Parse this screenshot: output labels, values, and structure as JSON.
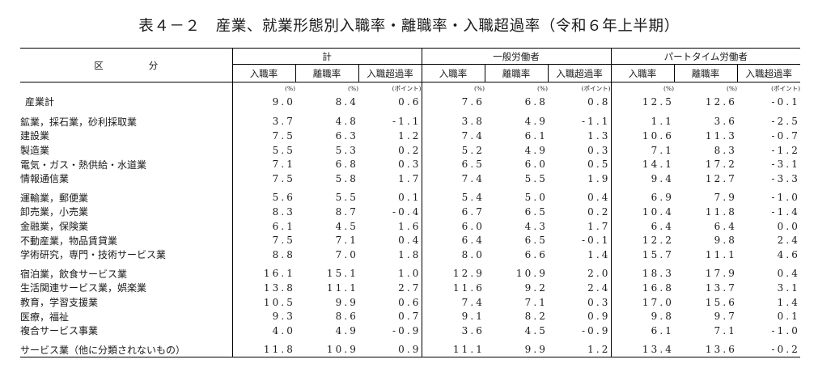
{
  "title": "表４－２　産業、就業形態別入職率・離職率・入職超過率（令和６年上半期）",
  "header": {
    "kubun_1": "区",
    "kubun_2": "分",
    "groups": [
      "計",
      "一般労働者",
      "パートタイム労働者"
    ],
    "sub": [
      "入職率",
      "離職率",
      "入職超過率"
    ],
    "units": [
      "(%)",
      "(%)",
      "(ポイント)"
    ]
  },
  "rows": [
    {
      "label": "産業計",
      "v": [
        "9.0",
        "8.4",
        "0.6",
        "7.6",
        "6.8",
        "0.8",
        "12.5",
        "12.6",
        "-0.1"
      ]
    },
    {
      "label": "鉱業，採石業，砂利採取業",
      "v": [
        "3.7",
        "4.8",
        "-1.1",
        "3.8",
        "4.9",
        "-1.1",
        "1.1",
        "3.6",
        "-2.5"
      ]
    },
    {
      "label": "建設業",
      "v": [
        "7.5",
        "6.3",
        "1.2",
        "7.4",
        "6.1",
        "1.3",
        "10.6",
        "11.3",
        "-0.7"
      ]
    },
    {
      "label": "製造業",
      "v": [
        "5.5",
        "5.3",
        "0.2",
        "5.2",
        "4.9",
        "0.3",
        "7.1",
        "8.3",
        "-1.2"
      ]
    },
    {
      "label": "電気・ガス・熱供給・水道業",
      "v": [
        "7.1",
        "6.8",
        "0.3",
        "6.5",
        "6.0",
        "0.5",
        "14.1",
        "17.2",
        "-3.1"
      ]
    },
    {
      "label": "情報通信業",
      "v": [
        "7.5",
        "5.8",
        "1.7",
        "7.4",
        "5.5",
        "1.9",
        "9.4",
        "12.7",
        "-3.3"
      ]
    },
    {
      "label": "運輸業，郵便業",
      "v": [
        "5.6",
        "5.5",
        "0.1",
        "5.4",
        "5.0",
        "0.4",
        "6.9",
        "7.9",
        "-1.0"
      ]
    },
    {
      "label": "卸売業，小売業",
      "v": [
        "8.3",
        "8.7",
        "-0.4",
        "6.7",
        "6.5",
        "0.2",
        "10.4",
        "11.8",
        "-1.4"
      ]
    },
    {
      "label": "金融業，保険業",
      "v": [
        "6.1",
        "4.5",
        "1.6",
        "6.0",
        "4.3",
        "1.7",
        "6.4",
        "6.4",
        "0.0"
      ]
    },
    {
      "label": "不動産業，物品賃貸業",
      "v": [
        "7.5",
        "7.1",
        "0.4",
        "6.4",
        "6.5",
        "-0.1",
        "12.2",
        "9.8",
        "2.4"
      ]
    },
    {
      "label": "学術研究，専門・技術サービス業",
      "v": [
        "8.8",
        "7.0",
        "1.8",
        "8.0",
        "6.6",
        "1.4",
        "15.7",
        "11.1",
        "4.6"
      ]
    },
    {
      "label": "宿泊業，飲食サービス業",
      "v": [
        "16.1",
        "15.1",
        "1.0",
        "12.9",
        "10.9",
        "2.0",
        "18.3",
        "17.9",
        "0.4"
      ]
    },
    {
      "label": "生活関連サービス業，娯楽業",
      "v": [
        "13.8",
        "11.1",
        "2.7",
        "11.6",
        "9.2",
        "2.4",
        "16.8",
        "13.7",
        "3.1"
      ]
    },
    {
      "label": "教育，学習支援業",
      "v": [
        "10.5",
        "9.9",
        "0.6",
        "7.4",
        "7.1",
        "0.3",
        "17.0",
        "15.6",
        "1.4"
      ]
    },
    {
      "label": "医療，福祉",
      "v": [
        "9.3",
        "8.6",
        "0.7",
        "9.1",
        "8.2",
        "0.9",
        "9.8",
        "9.7",
        "0.1"
      ]
    },
    {
      "label": "複合サービス事業",
      "v": [
        "4.0",
        "4.9",
        "-0.9",
        "3.6",
        "4.5",
        "-0.9",
        "6.1",
        "7.1",
        "-1.0"
      ]
    },
    {
      "label": "サービス業（他に分類されないもの）",
      "v": [
        "11.8",
        "10.9",
        "0.9",
        "11.1",
        "9.9",
        "1.2",
        "13.4",
        "13.6",
        "-0.2"
      ]
    }
  ]
}
